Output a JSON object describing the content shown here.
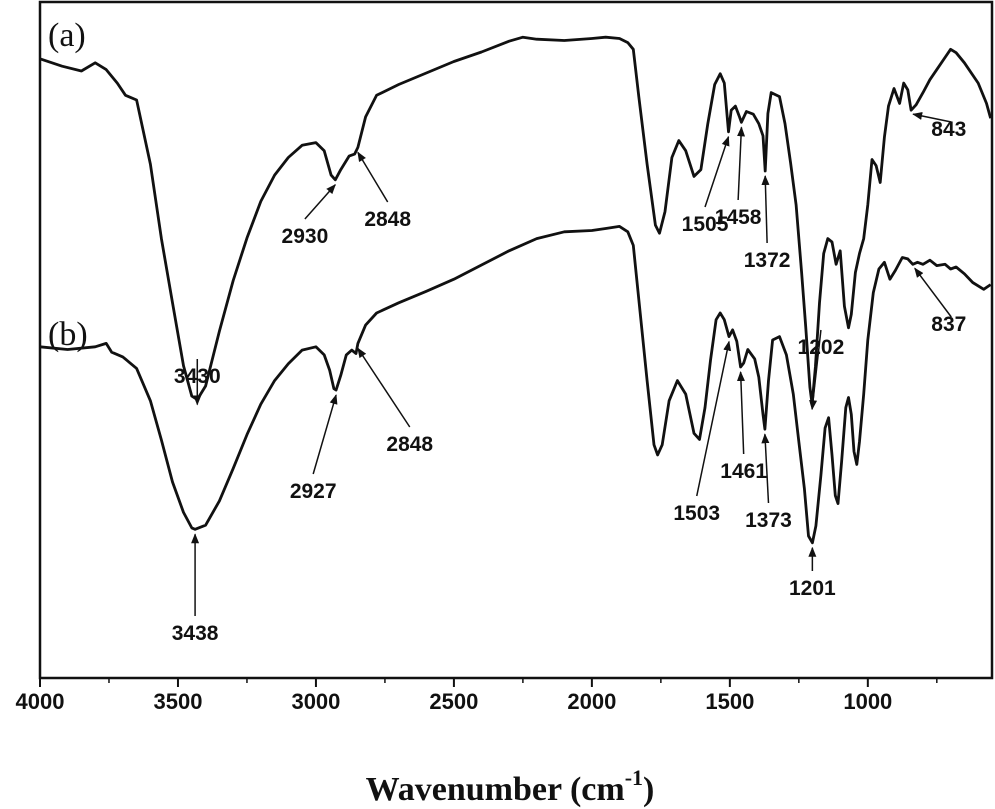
{
  "chart_data": {
    "type": "line",
    "xlabel": "Wavenumber (cm",
    "xlabel_sup": "-1",
    "xlabel_close": ")",
    "ylabel": "",
    "xlim": [
      4000,
      550
    ],
    "ylim": [
      0,
      1
    ],
    "x_reversed": true,
    "x_ticks": [
      4000,
      3500,
      3000,
      2500,
      2000,
      1500,
      1000
    ],
    "y_ticks_shown": false,
    "grid": false,
    "series": [
      {
        "name": "(a)",
        "color": "#111111",
        "points": [
          [
            4000,
            0.916
          ],
          [
            3920,
            0.905
          ],
          [
            3850,
            0.898
          ],
          [
            3800,
            0.91
          ],
          [
            3760,
            0.9
          ],
          [
            3720,
            0.88
          ],
          [
            3690,
            0.862
          ],
          [
            3650,
            0.855
          ],
          [
            3600,
            0.76
          ],
          [
            3560,
            0.65
          ],
          [
            3520,
            0.555
          ],
          [
            3480,
            0.462
          ],
          [
            3450,
            0.417
          ],
          [
            3430,
            0.412
          ],
          [
            3400,
            0.432
          ],
          [
            3350,
            0.513
          ],
          [
            3300,
            0.588
          ],
          [
            3250,
            0.651
          ],
          [
            3200,
            0.705
          ],
          [
            3150,
            0.744
          ],
          [
            3100,
            0.77
          ],
          [
            3050,
            0.788
          ],
          [
            3000,
            0.792
          ],
          [
            2970,
            0.78
          ],
          [
            2945,
            0.744
          ],
          [
            2930,
            0.737
          ],
          [
            2910,
            0.752
          ],
          [
            2880,
            0.772
          ],
          [
            2860,
            0.775
          ],
          [
            2848,
            0.785
          ],
          [
            2820,
            0.83
          ],
          [
            2780,
            0.862
          ],
          [
            2700,
            0.878
          ],
          [
            2600,
            0.895
          ],
          [
            2500,
            0.912
          ],
          [
            2400,
            0.926
          ],
          [
            2300,
            0.942
          ],
          [
            2250,
            0.948
          ],
          [
            2200,
            0.945
          ],
          [
            2100,
            0.943
          ],
          [
            2000,
            0.946
          ],
          [
            1950,
            0.948
          ],
          [
            1900,
            0.946
          ],
          [
            1870,
            0.94
          ],
          [
            1850,
            0.93
          ],
          [
            1830,
            0.86
          ],
          [
            1800,
            0.76
          ],
          [
            1770,
            0.67
          ],
          [
            1755,
            0.658
          ],
          [
            1735,
            0.69
          ],
          [
            1710,
            0.77
          ],
          [
            1685,
            0.795
          ],
          [
            1660,
            0.78
          ],
          [
            1630,
            0.742
          ],
          [
            1605,
            0.752
          ],
          [
            1580,
            0.82
          ],
          [
            1555,
            0.878
          ],
          [
            1535,
            0.894
          ],
          [
            1520,
            0.88
          ],
          [
            1505,
            0.808
          ],
          [
            1495,
            0.84
          ],
          [
            1480,
            0.846
          ],
          [
            1465,
            0.83
          ],
          [
            1458,
            0.822
          ],
          [
            1440,
            0.838
          ],
          [
            1415,
            0.834
          ],
          [
            1395,
            0.82
          ],
          [
            1380,
            0.802
          ],
          [
            1372,
            0.75
          ],
          [
            1362,
            0.835
          ],
          [
            1350,
            0.866
          ],
          [
            1320,
            0.86
          ],
          [
            1300,
            0.82
          ],
          [
            1280,
            0.762
          ],
          [
            1260,
            0.7
          ],
          [
            1240,
            0.6
          ],
          [
            1225,
            0.52
          ],
          [
            1210,
            0.43
          ],
          [
            1202,
            0.405
          ],
          [
            1190,
            0.46
          ],
          [
            1175,
            0.555
          ],
          [
            1160,
            0.628
          ],
          [
            1145,
            0.65
          ],
          [
            1130,
            0.645
          ],
          [
            1115,
            0.612
          ],
          [
            1100,
            0.632
          ],
          [
            1085,
            0.55
          ],
          [
            1070,
            0.518
          ],
          [
            1060,
            0.538
          ],
          [
            1045,
            0.6
          ],
          [
            1030,
            0.628
          ],
          [
            1015,
            0.65
          ],
          [
            1000,
            0.7
          ],
          [
            985,
            0.767
          ],
          [
            970,
            0.758
          ],
          [
            955,
            0.733
          ],
          [
            940,
            0.8
          ],
          [
            925,
            0.846
          ],
          [
            905,
            0.872
          ],
          [
            885,
            0.85
          ],
          [
            870,
            0.88
          ],
          [
            855,
            0.87
          ],
          [
            843,
            0.84
          ],
          [
            825,
            0.848
          ],
          [
            800,
            0.866
          ],
          [
            775,
            0.885
          ],
          [
            750,
            0.9
          ],
          [
            720,
            0.918
          ],
          [
            700,
            0.93
          ],
          [
            680,
            0.925
          ],
          [
            650,
            0.91
          ],
          [
            600,
            0.88
          ],
          [
            570,
            0.85
          ],
          [
            555,
            0.828
          ]
        ]
      },
      {
        "name": "(b)",
        "color": "#111111",
        "points": [
          [
            4000,
            0.49
          ],
          [
            3900,
            0.486
          ],
          [
            3800,
            0.49
          ],
          [
            3760,
            0.495
          ],
          [
            3740,
            0.482
          ],
          [
            3700,
            0.475
          ],
          [
            3650,
            0.458
          ],
          [
            3600,
            0.41
          ],
          [
            3560,
            0.352
          ],
          [
            3520,
            0.29
          ],
          [
            3480,
            0.245
          ],
          [
            3450,
            0.222
          ],
          [
            3438,
            0.22
          ],
          [
            3400,
            0.226
          ],
          [
            3350,
            0.262
          ],
          [
            3300,
            0.31
          ],
          [
            3250,
            0.36
          ],
          [
            3200,
            0.405
          ],
          [
            3150,
            0.44
          ],
          [
            3100,
            0.465
          ],
          [
            3050,
            0.485
          ],
          [
            3000,
            0.49
          ],
          [
            2970,
            0.478
          ],
          [
            2950,
            0.455
          ],
          [
            2935,
            0.428
          ],
          [
            2927,
            0.426
          ],
          [
            2910,
            0.448
          ],
          [
            2890,
            0.478
          ],
          [
            2870,
            0.485
          ],
          [
            2855,
            0.48
          ],
          [
            2848,
            0.495
          ],
          [
            2820,
            0.522
          ],
          [
            2780,
            0.54
          ],
          [
            2700,
            0.555
          ],
          [
            2600,
            0.572
          ],
          [
            2500,
            0.59
          ],
          [
            2400,
            0.611
          ],
          [
            2300,
            0.632
          ],
          [
            2200,
            0.65
          ],
          [
            2100,
            0.66
          ],
          [
            2000,
            0.662
          ],
          [
            1950,
            0.665
          ],
          [
            1900,
            0.668
          ],
          [
            1870,
            0.66
          ],
          [
            1850,
            0.64
          ],
          [
            1830,
            0.56
          ],
          [
            1800,
            0.44
          ],
          [
            1775,
            0.345
          ],
          [
            1762,
            0.33
          ],
          [
            1745,
            0.345
          ],
          [
            1720,
            0.41
          ],
          [
            1690,
            0.44
          ],
          [
            1660,
            0.42
          ],
          [
            1630,
            0.362
          ],
          [
            1610,
            0.353
          ],
          [
            1590,
            0.4
          ],
          [
            1570,
            0.47
          ],
          [
            1550,
            0.53
          ],
          [
            1535,
            0.54
          ],
          [
            1520,
            0.53
          ],
          [
            1503,
            0.505
          ],
          [
            1490,
            0.515
          ],
          [
            1475,
            0.498
          ],
          [
            1461,
            0.46
          ],
          [
            1450,
            0.466
          ],
          [
            1435,
            0.486
          ],
          [
            1410,
            0.472
          ],
          [
            1395,
            0.445
          ],
          [
            1380,
            0.39
          ],
          [
            1373,
            0.368
          ],
          [
            1360,
            0.44
          ],
          [
            1345,
            0.5
          ],
          [
            1320,
            0.505
          ],
          [
            1295,
            0.478
          ],
          [
            1270,
            0.42
          ],
          [
            1250,
            0.35
          ],
          [
            1230,
            0.28
          ],
          [
            1215,
            0.21
          ],
          [
            1201,
            0.2
          ],
          [
            1188,
            0.225
          ],
          [
            1170,
            0.3
          ],
          [
            1155,
            0.37
          ],
          [
            1142,
            0.385
          ],
          [
            1130,
            0.33
          ],
          [
            1118,
            0.27
          ],
          [
            1108,
            0.258
          ],
          [
            1095,
            0.32
          ],
          [
            1080,
            0.4
          ],
          [
            1070,
            0.415
          ],
          [
            1060,
            0.39
          ],
          [
            1050,
            0.335
          ],
          [
            1040,
            0.316
          ],
          [
            1030,
            0.35
          ],
          [
            1015,
            0.42
          ],
          [
            1000,
            0.5
          ],
          [
            980,
            0.57
          ],
          [
            960,
            0.605
          ],
          [
            940,
            0.615
          ],
          [
            920,
            0.59
          ],
          [
            900,
            0.603
          ],
          [
            875,
            0.622
          ],
          [
            855,
            0.62
          ],
          [
            837,
            0.612
          ],
          [
            820,
            0.615
          ],
          [
            800,
            0.612
          ],
          [
            775,
            0.618
          ],
          [
            750,
            0.61
          ],
          [
            720,
            0.612
          ],
          [
            700,
            0.605
          ],
          [
            680,
            0.608
          ],
          [
            650,
            0.598
          ],
          [
            620,
            0.585
          ],
          [
            580,
            0.575
          ],
          [
            555,
            0.582
          ]
        ]
      }
    ],
    "panel_labels": [
      "(a)",
      "(b)"
    ],
    "annotations": {
      "a": [
        {
          "label": "3430",
          "x": 3430,
          "text_x": 3430
        },
        {
          "label": "2930",
          "x": 2930,
          "text_x": 3040
        },
        {
          "label": "2848",
          "x": 2848,
          "text_x": 2740
        },
        {
          "label": "1505",
          "x": 1505,
          "text_x": 1590
        },
        {
          "label": "1458",
          "x": 1458,
          "text_x": 1470
        },
        {
          "label": "1372",
          "x": 1372,
          "text_x": 1365
        },
        {
          "label": "1202",
          "x": 1202,
          "text_x": 1170
        },
        {
          "label": "843",
          "x": 843,
          "text_x": 770
        }
      ],
      "b": [
        {
          "label": "3438",
          "x": 3438,
          "text_x": 3438
        },
        {
          "label": "2927",
          "x": 2927,
          "text_x": 3010
        },
        {
          "label": "2848",
          "x": 2848,
          "text_x": 2660
        },
        {
          "label": "1503",
          "x": 1503,
          "text_x": 1620
        },
        {
          "label": "1461",
          "x": 1461,
          "text_x": 1450
        },
        {
          "label": "1373",
          "x": 1373,
          "text_x": 1360
        },
        {
          "label": "1201",
          "x": 1201,
          "text_x": 1201
        },
        {
          "label": "837",
          "x": 837,
          "text_x": 770
        }
      ]
    }
  }
}
